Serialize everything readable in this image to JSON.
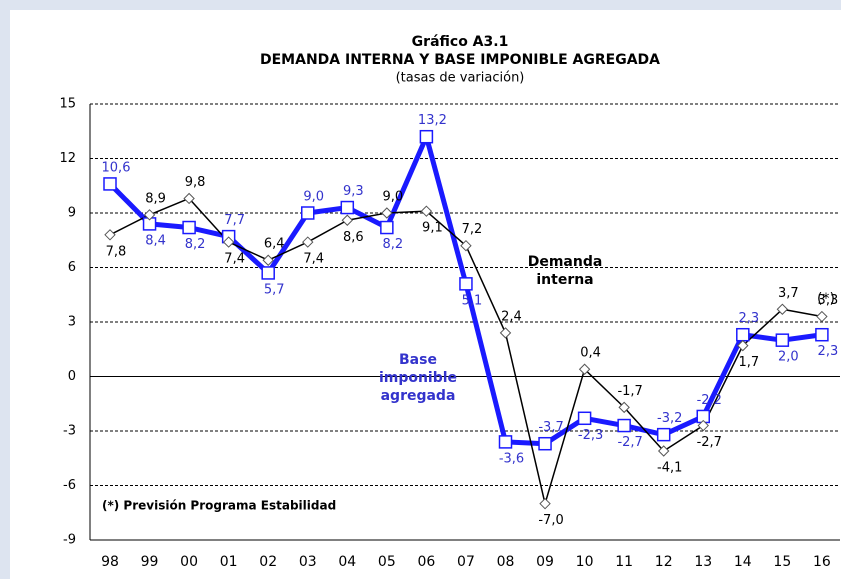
{
  "chart_data": {
    "type": "line",
    "title": "Gráfico A3.1",
    "subtitle": "DEMANDA INTERNA Y BASE IMPONIBLE AGREGADA",
    "note": "(tasas de variación)",
    "categories": [
      "98",
      "99",
      "00",
      "01",
      "02",
      "03",
      "04",
      "05",
      "06",
      "07",
      "08",
      "09",
      "10",
      "11",
      "12",
      "13",
      "14",
      "15",
      "16"
    ],
    "series": [
      {
        "name": "Base imponible agregada",
        "color": "#1a1aff",
        "values": [
          10.6,
          8.4,
          8.2,
          7.7,
          5.7,
          9.0,
          9.3,
          8.2,
          13.2,
          5.1,
          -3.6,
          -3.7,
          -2.3,
          -2.7,
          -3.2,
          -2.2,
          2.3,
          2.0,
          2.3
        ],
        "value_labels": [
          "10,6",
          "8,4",
          "8,2",
          "7,7",
          "5,7",
          "9,0",
          "9,3",
          "8,2",
          "13,2",
          "5,1",
          "-3,6",
          "-3,7",
          "-2,3",
          "-2,7",
          "-3,2",
          "-2,2",
          "2,3",
          "2,0",
          "2,3"
        ]
      },
      {
        "name": "Demanda interna",
        "color": "#000000",
        "values": [
          7.8,
          8.9,
          9.8,
          7.4,
          6.4,
          7.4,
          8.6,
          9.0,
          9.1,
          7.2,
          2.4,
          -7.0,
          0.4,
          -1.7,
          -4.1,
          -2.7,
          1.7,
          3.7,
          3.3
        ],
        "value_labels": [
          "7,8",
          "8,9",
          "9,8",
          "7,4",
          "6,4",
          "7,4",
          "8,6",
          "9,0",
          "9,1",
          "7,2",
          "2,4",
          "-7,0",
          "0,4",
          "-1,7",
          "-4,1",
          "-2,7",
          "1,7",
          "3,7",
          "3,3"
        ]
      }
    ],
    "annotations": [
      {
        "lines": [
          "Demanda",
          "interna"
        ]
      },
      {
        "lines": [
          "Base",
          "imponible",
          "agregada"
        ]
      },
      {
        "lines": [
          "(*) Previsión Programa Estabilidad"
        ]
      },
      {
        "lines": [
          "(*)"
        ]
      }
    ],
    "ylim": [
      -9,
      15
    ],
    "yticks": [
      -9,
      -6,
      -3,
      0,
      3,
      6,
      9,
      12,
      15
    ],
    "grid": true
  }
}
